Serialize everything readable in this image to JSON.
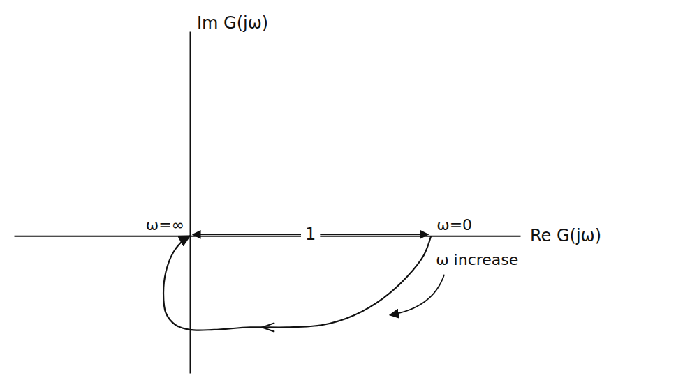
{
  "chart_data": {
    "type": "line",
    "x_label": "Re G(jω)",
    "y_label": "Im G(jω)",
    "x": [
      1,
      0.97,
      0.9,
      0.8,
      0.68,
      0.55,
      0.4,
      0.25,
      0.1,
      0.0,
      -0.06,
      -0.1,
      -0.11,
      -0.1,
      -0.07,
      -0.03,
      0
    ],
    "values": [
      0,
      -0.08,
      -0.17,
      -0.26,
      -0.33,
      -0.37,
      -0.38,
      -0.38,
      -0.39,
      -0.39,
      -0.37,
      -0.32,
      -0.24,
      -0.15,
      -0.07,
      -0.02,
      0
    ],
    "xlim": [
      -0.73,
      1.37
    ],
    "ylim": [
      -0.57,
      0.85
    ],
    "tick_labels": false,
    "grid": false,
    "color": "#111111",
    "annotations": [
      {
        "text": "ω=∞",
        "x": 0,
        "y": 0
      },
      {
        "text": "ω=0",
        "x": 1,
        "y": 0
      },
      {
        "text": "1",
        "x": [
          0,
          1
        ],
        "y": 0
      },
      {
        "text": "ω increase",
        "x": 1.02,
        "y": -0.12
      }
    ]
  }
}
